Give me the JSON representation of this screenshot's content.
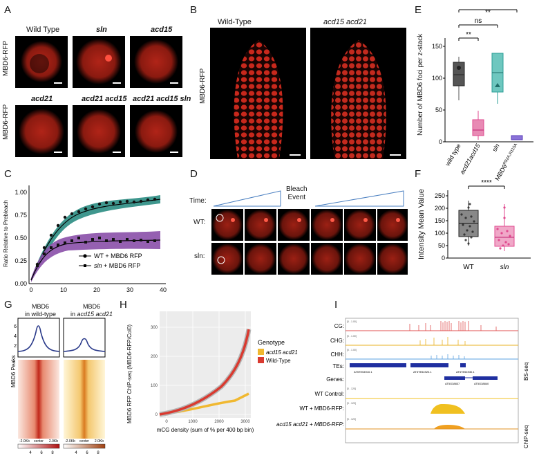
{
  "panels": {
    "A": "A",
    "B": "B",
    "C": "C",
    "D": "D",
    "E": "E",
    "F": "F",
    "G": "G",
    "H": "H",
    "I": "I"
  },
  "panelA": {
    "ylabel_top": "MBD6-RFP",
    "ylabel_bottom": "MBD6-RFP",
    "row1": [
      "Wild Type",
      "sln",
      "acd15"
    ],
    "row2": [
      "acd21",
      "acd21 acd15",
      "acd21 acd15 sln"
    ]
  },
  "panelB": {
    "ylabel": "MBD6-RFP",
    "col1": "Wild-Type",
    "col2": "acd15 acd21"
  },
  "panelC": {
    "ylabel": "Ratio Relative to Prebleach",
    "legend": [
      {
        "text": "WT + MBD6 RFP",
        "color": "#1a1a1a"
      },
      {
        "text_italic": "sln",
        "text": " + MBD6 RFP"
      }
    ],
    "xticks": [
      "0",
      "10",
      "20",
      "30",
      "40"
    ],
    "yticks": [
      "0.00",
      "0.25",
      "0.50",
      "0.75",
      "1.00"
    ],
    "colors": {
      "wt": "#2a8c82",
      "sln": "#8a4fa8"
    }
  },
  "panelD": {
    "time_label": "Time:",
    "bleach_label": "Bleach\nEvent",
    "bleach_1": "Bleach",
    "bleach_2": "Event",
    "row_wt": "WT:",
    "row_sln": "sln:"
  },
  "panelE": {
    "ylabel": "Number of MBD6 foci per z-stack",
    "yticks": [
      "0",
      "50",
      "100",
      "150"
    ],
    "categories": [
      "wild type",
      "acd21acd15",
      "sln",
      "MBD6"
    ],
    "mbd6_sup": "R92A,R115A",
    "sig": [
      "**",
      "ns",
      "**"
    ],
    "colors": [
      "#555555",
      "#e04a8f",
      "#2a9d96",
      "#5b3fb8"
    ]
  },
  "panelF": {
    "ylabel": "Intensity Mean Value",
    "categories": [
      "WT",
      "sln"
    ],
    "yticks": [
      "0",
      "50",
      "100",
      "150",
      "200",
      "250"
    ],
    "sig": "****"
  },
  "panelG": {
    "col1_title": "MBD6\nin wild-type",
    "col1_line1": "MBD6",
    "col1_line2": "in wild-type",
    "col2_line1": "MBD6",
    "col2_line2_pre": "in ",
    "col2_line2_it": "acd15 acd21",
    "ylabel": "MBD6 Peaks",
    "xticks": [
      "-2.0Kb",
      "center",
      "2.0Kb"
    ],
    "profile_yticks": [
      "2",
      "4",
      "6"
    ],
    "cbar1": [
      "4",
      "6",
      "8"
    ],
    "cbar2": [
      "4",
      "6",
      "8"
    ]
  },
  "panelH": {
    "ylabel": "MBD6 RFP ChIP-seq (MBD6-RFP/Col0)",
    "xlabel": "mCG density (sum of % per 400 bp bin)",
    "xticks": [
      "0",
      "1000",
      "2000",
      "3000"
    ],
    "yticks": [
      "0",
      "100",
      "200",
      "300"
    ],
    "legend_title": "Genotype",
    "legend": [
      "acd15 acd21",
      "Wild-Type"
    ],
    "colors": {
      "acd": "#f0b830",
      "wt": "#d93a30"
    }
  },
  "panelI": {
    "tracks": [
      "CG:",
      "CHG:",
      "CHH:",
      "TEs:",
      "Genes:",
      "WT Control:",
      "WT + MBD6-RFP:",
      "acd15 acd21 + MBD6-RFP:"
    ],
    "right_top": "BS-seq",
    "right_bottom": "ChIP-seq",
    "ranges": [
      "[0 - 1.00]",
      "[0 - 1.00]",
      "[0 - 1.00]",
      "[0 - 120]",
      "[0 - 120]",
      "[0 - 120]"
    ],
    "te_labels": [
      "AT5TE54910.1",
      "AT5TE54920.1",
      "AT5TE54930.1"
    ],
    "gene_labels": [
      "AT5G38837",
      "AT5G38840"
    ],
    "colors": {
      "cg": "#e05050",
      "chg": "#e8b020",
      "chh": "#5aa0e0",
      "te": "#1f2fa0",
      "chip": "#f0c020"
    }
  }
}
